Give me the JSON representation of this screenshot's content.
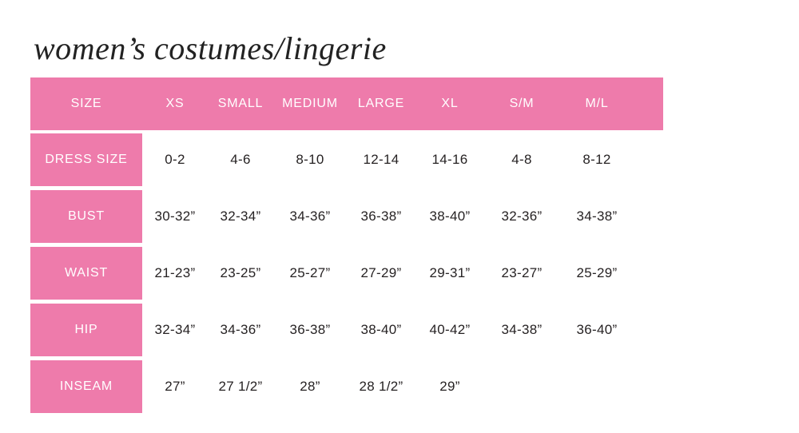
{
  "title": "women’s costumes/lingerie",
  "colors": {
    "pink": "#EE7BAB",
    "header_text": "#FFFFFF",
    "cell_text": "#262223",
    "background": "#FFFFFF"
  },
  "table": {
    "columns": [
      "SIZE",
      "XS",
      "SMALL",
      "MEDIUM",
      "LARGE",
      "XL",
      "S/M",
      "M/L"
    ],
    "rows": [
      {
        "label": "DRESS SIZE",
        "values": [
          "0-2",
          "4-6",
          "8-10",
          "12-14",
          "14-16",
          "4-8",
          "8-12"
        ]
      },
      {
        "label": "BUST",
        "values": [
          "30-32”",
          "32-34”",
          "34-36”",
          "36-38”",
          "38-40”",
          "32-36”",
          "34-38”"
        ]
      },
      {
        "label": "WAIST",
        "values": [
          "21-23”",
          "23-25”",
          "25-27”",
          "27-29”",
          "29-31”",
          "23-27”",
          "25-29”"
        ]
      },
      {
        "label": "HIP",
        "values": [
          "32-34”",
          "34-36”",
          "36-38”",
          "38-40”",
          "40-42”",
          "34-38”",
          "36-40”"
        ]
      },
      {
        "label": "INSEAM",
        "values": [
          "27”",
          "27 1/2”",
          "28”",
          "28 1/2”",
          "29”",
          "",
          ""
        ]
      }
    ]
  },
  "chart_data": {
    "type": "table",
    "title": "women’s costumes/lingerie",
    "columns": [
      "SIZE",
      "XS",
      "SMALL",
      "MEDIUM",
      "LARGE",
      "XL",
      "S/M",
      "M/L"
    ],
    "rows": [
      [
        "DRESS SIZE",
        "0-2",
        "4-6",
        "8-10",
        "12-14",
        "14-16",
        "4-8",
        "8-12"
      ],
      [
        "BUST",
        "30-32”",
        "32-34”",
        "34-36”",
        "36-38”",
        "38-40”",
        "32-36”",
        "34-38”"
      ],
      [
        "WAIST",
        "21-23”",
        "23-25”",
        "25-27”",
        "27-29”",
        "29-31”",
        "23-27”",
        "25-29”"
      ],
      [
        "HIP",
        "32-34”",
        "34-36”",
        "36-38”",
        "38-40”",
        "40-42”",
        "34-38”",
        "36-40”"
      ],
      [
        "INSEAM",
        "27”",
        "27 1/2”",
        "28”",
        "28 1/2”",
        "29”",
        "",
        ""
      ]
    ],
    "layout": {
      "header_background": "#EE7BAB",
      "label_column_background": "#EE7BAB",
      "grid": "off"
    }
  }
}
